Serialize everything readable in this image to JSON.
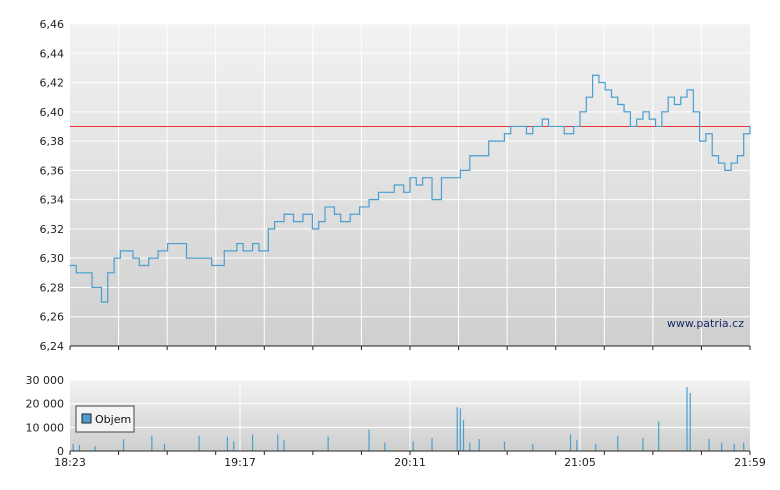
{
  "chart_data": [
    {
      "type": "line",
      "title": "",
      "xlabel": "",
      "ylabel": "",
      "ylim": [
        6.24,
        6.46
      ],
      "y_ticks": [
        "6,24",
        "6,26",
        "6,28",
        "6,30",
        "6,32",
        "6,34",
        "6,36",
        "6,38",
        "6,40",
        "6,42",
        "6,44",
        "6,46"
      ],
      "y_tick_values": [
        6.24,
        6.26,
        6.28,
        6.3,
        6.32,
        6.34,
        6.36,
        6.38,
        6.4,
        6.42,
        6.44,
        6.46
      ],
      "reference_line": {
        "value": 6.39,
        "color": "#ee3333"
      },
      "watermark": "www.patria.cz",
      "grid": true,
      "line_color": "#4a9fd0",
      "series": [
        {
          "x": [
            "18:23",
            "18:25",
            "18:28",
            "18:30",
            "18:33",
            "18:35",
            "18:37",
            "18:39",
            "18:43",
            "18:45",
            "18:48",
            "18:51",
            "18:54",
            "18:57",
            "19:00",
            "19:04",
            "19:08",
            "19:12",
            "19:16",
            "19:18",
            "19:21",
            "19:23",
            "19:26",
            "19:28",
            "19:31",
            "19:34",
            "19:37",
            "19:40",
            "19:42",
            "19:44",
            "19:47",
            "19:49",
            "19:52",
            "19:55",
            "19:58",
            "20:01",
            "20:04",
            "20:06",
            "20:09",
            "20:11",
            "20:13",
            "20:15",
            "20:18",
            "20:21",
            "20:24",
            "20:27",
            "20:30",
            "20:33",
            "20:36",
            "20:38",
            "20:41",
            "20:43",
            "20:46",
            "20:48",
            "20:50",
            "20:53",
            "20:55",
            "20:57",
            "21:00",
            "21:03",
            "21:05",
            "21:07",
            "21:09",
            "21:11",
            "21:13",
            "21:15",
            "21:17",
            "21:19",
            "21:21",
            "21:23",
            "21:25",
            "21:27",
            "21:29",
            "21:31",
            "21:33",
            "21:35",
            "21:37",
            "21:39",
            "21:41",
            "21:43",
            "21:45",
            "21:47",
            "21:49",
            "21:51",
            "21:53",
            "21:55",
            "21:57",
            "21:59"
          ],
          "values": [
            6.295,
            6.29,
            6.29,
            6.28,
            6.27,
            6.29,
            6.3,
            6.305,
            6.3,
            6.295,
            6.3,
            6.305,
            6.31,
            6.31,
            6.3,
            6.3,
            6.295,
            6.305,
            6.31,
            6.305,
            6.31,
            6.305,
            6.32,
            6.325,
            6.33,
            6.325,
            6.33,
            6.32,
            6.325,
            6.335,
            6.33,
            6.325,
            6.33,
            6.335,
            6.34,
            6.345,
            6.345,
            6.35,
            6.345,
            6.355,
            6.35,
            6.355,
            6.34,
            6.355,
            6.355,
            6.36,
            6.37,
            6.37,
            6.38,
            6.38,
            6.385,
            6.39,
            6.39,
            6.385,
            6.39,
            6.395,
            6.39,
            6.39,
            6.385,
            6.39,
            6.4,
            6.41,
            6.425,
            6.42,
            6.415,
            6.41,
            6.405,
            6.4,
            6.39,
            6.395,
            6.4,
            6.395,
            6.39,
            6.4,
            6.41,
            6.405,
            6.41,
            6.415,
            6.4,
            6.38,
            6.385,
            6.37,
            6.365,
            6.36,
            6.365,
            6.37,
            6.385,
            6.39
          ]
        }
      ]
    },
    {
      "type": "bar",
      "title": "",
      "xlabel": "",
      "ylabel": "",
      "ylim": [
        0,
        30000
      ],
      "y_ticks": [
        "0",
        "10 000",
        "20 000",
        "30 000"
      ],
      "y_tick_values": [
        0,
        10000,
        20000,
        30000
      ],
      "x_ticks": [
        "18:23",
        "19:17",
        "20:11",
        "21:05",
        "21:59"
      ],
      "bar_color": "#4a9fd0",
      "grid": true,
      "legend": {
        "placement": "top-left",
        "entries": [
          "Objem"
        ]
      },
      "series": [
        {
          "name": "Objem",
          "x": [
            "18:24",
            "18:26",
            "18:31",
            "18:40",
            "18:49",
            "18:53",
            "19:04",
            "19:13",
            "19:15",
            "19:21",
            "19:29",
            "19:31",
            "19:45",
            "19:58",
            "20:03",
            "20:12",
            "20:18",
            "20:26",
            "20:27",
            "20:28",
            "20:30",
            "20:33",
            "20:41",
            "20:50",
            "21:02",
            "21:04",
            "21:10",
            "21:17",
            "21:25",
            "21:30",
            "21:39",
            "21:40",
            "21:46",
            "21:50",
            "21:54",
            "21:57"
          ],
          "values": [
            3000,
            2500,
            2000,
            5000,
            6500,
            3000,
            6500,
            6000,
            4000,
            7000,
            7000,
            4500,
            6000,
            9000,
            3500,
            4000,
            5500,
            18500,
            18000,
            13000,
            3500,
            5000,
            4000,
            3000,
            7000,
            4500,
            3000,
            6500,
            5500,
            12500,
            27000,
            24500,
            5000,
            3500,
            3000,
            3500
          ]
        }
      ]
    }
  ]
}
